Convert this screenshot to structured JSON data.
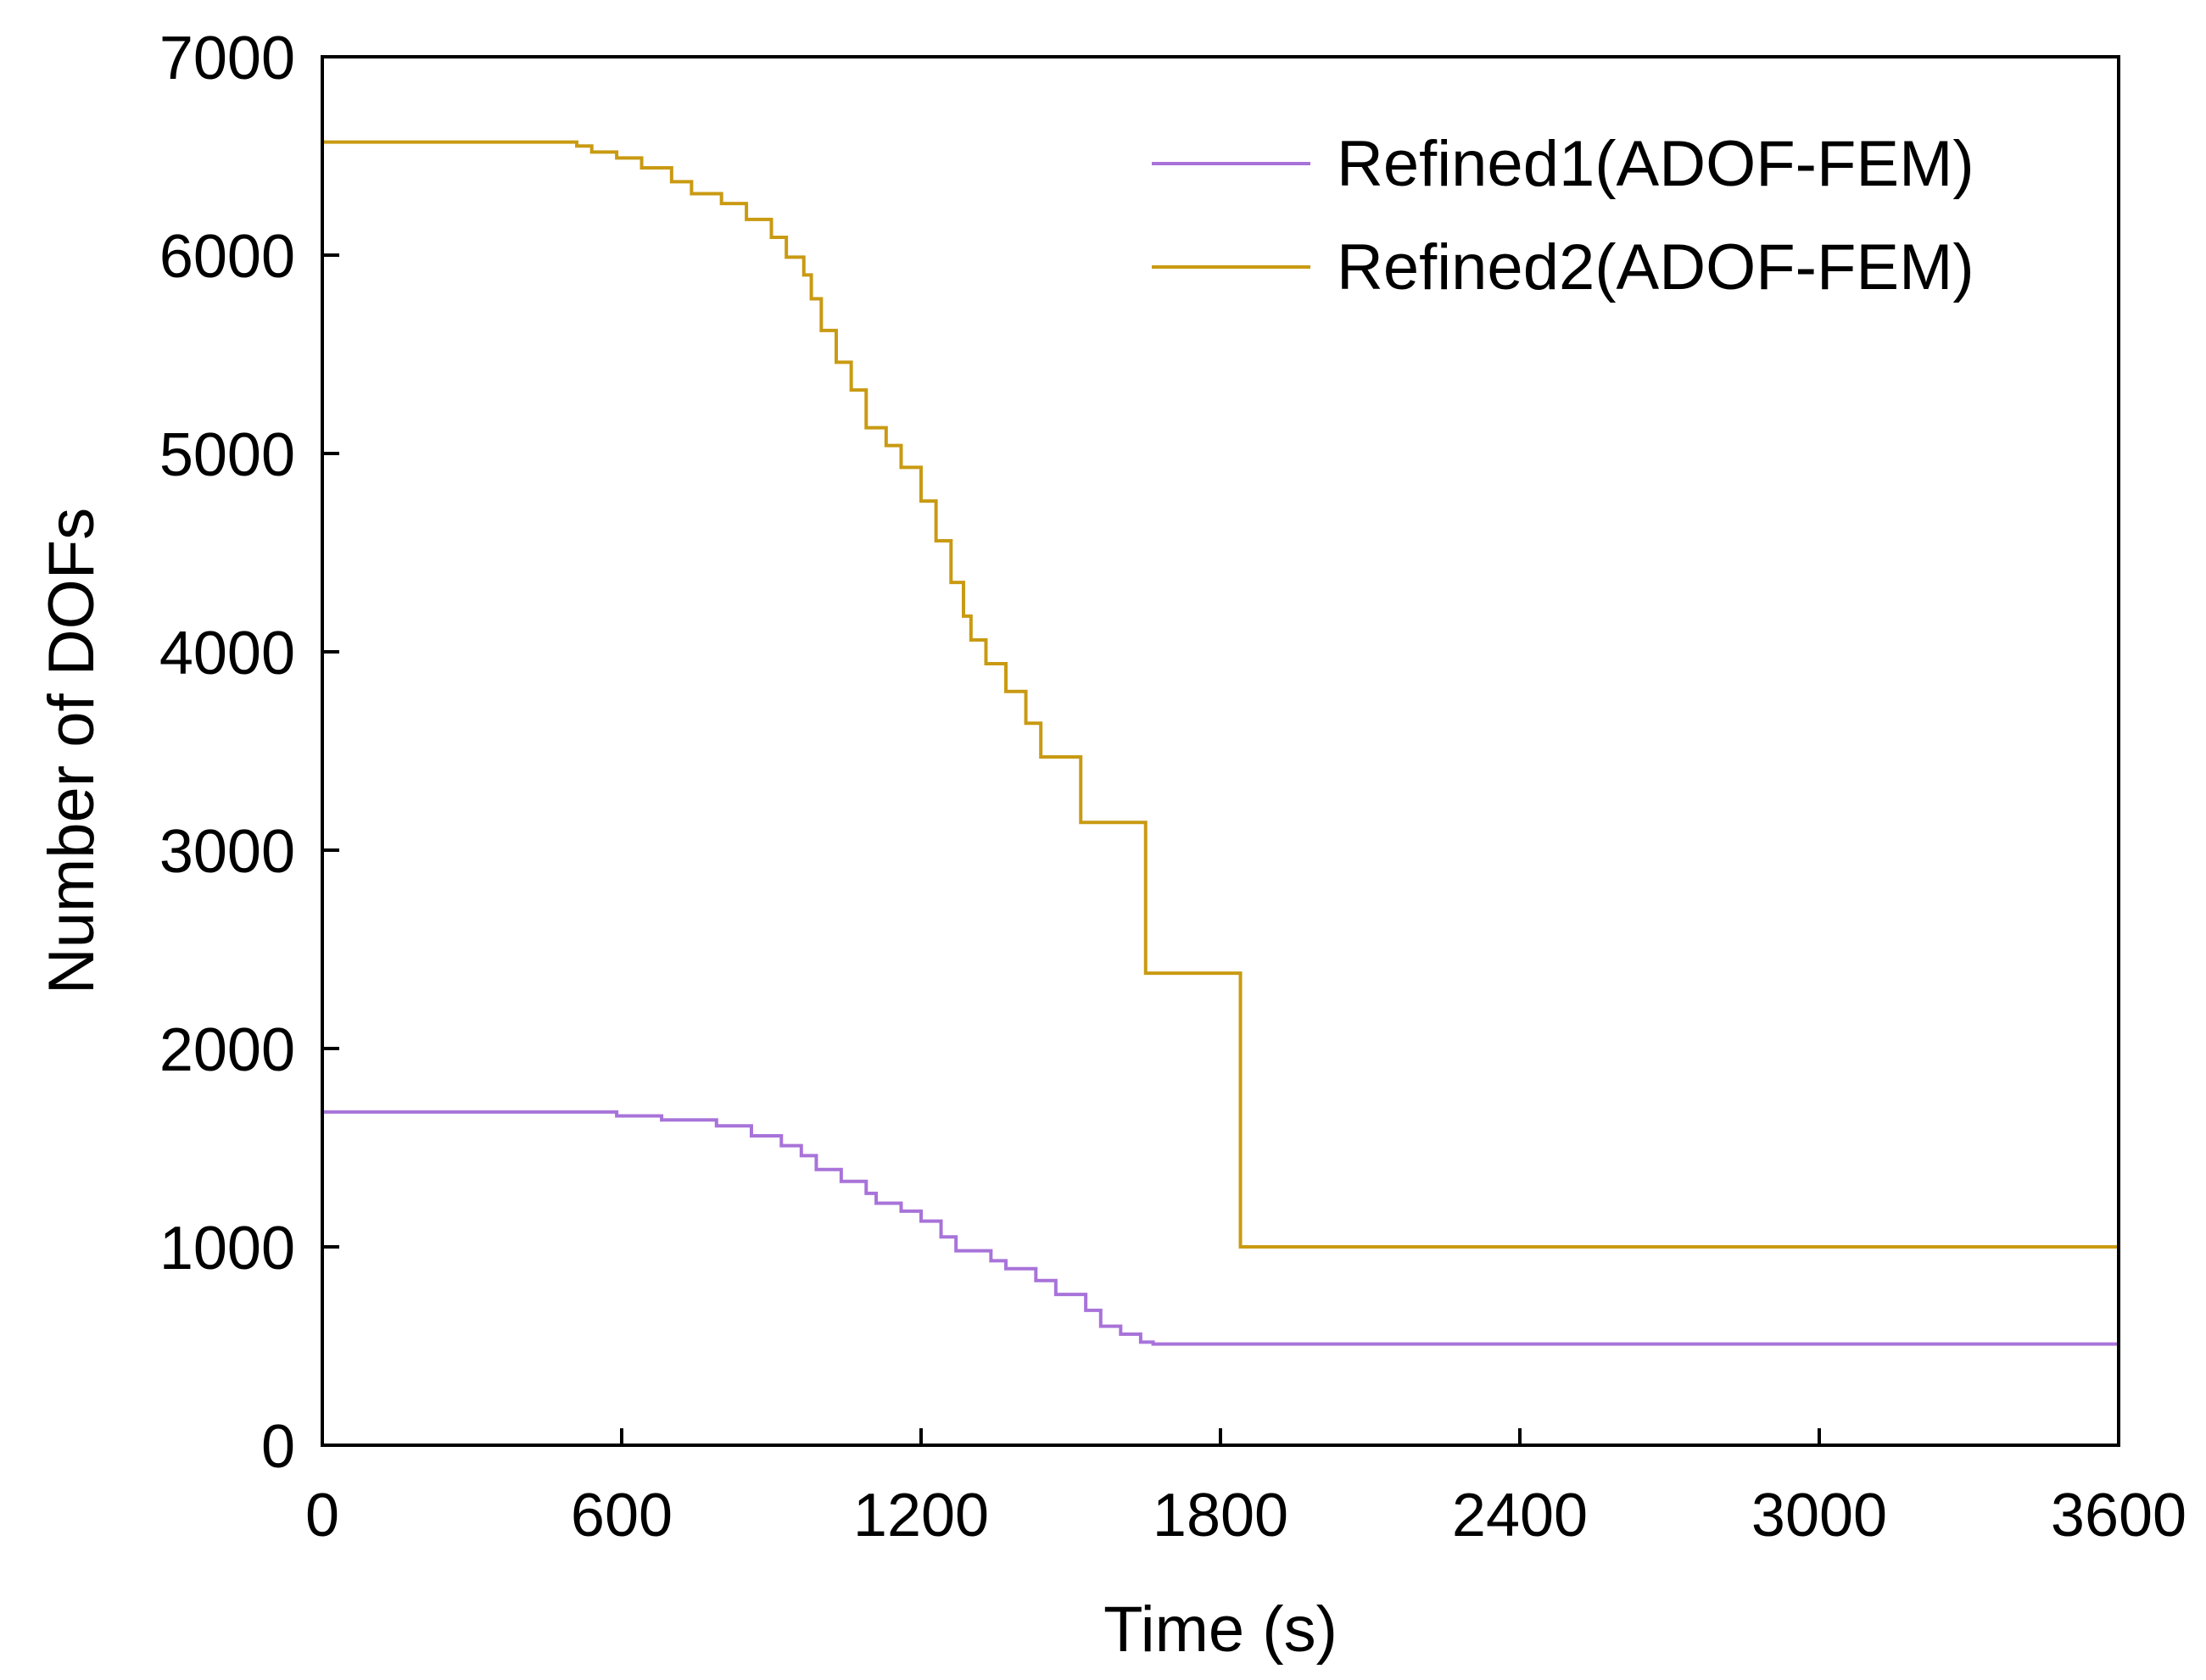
{
  "chart_data": {
    "type": "line",
    "title": "",
    "xlabel": "Time (s)",
    "ylabel": "Number of DOFs",
    "xlim": [
      0,
      3600
    ],
    "ylim": [
      0,
      7000
    ],
    "xticks": [
      0,
      600,
      1200,
      1800,
      2400,
      3000,
      3600
    ],
    "yticks": [
      0,
      1000,
      2000,
      3000,
      4000,
      5000,
      6000,
      7000
    ],
    "grid": false,
    "legend_position": "top-right",
    "series": [
      {
        "name": "Refined1(ADOF-FEM)",
        "color": "#a873d9",
        "step": true,
        "x": [
          0,
          590,
          680,
          790,
          860,
          920,
          960,
          990,
          1040,
          1090,
          1110,
          1160,
          1200,
          1240,
          1270,
          1340,
          1370,
          1430,
          1470,
          1530,
          1560,
          1600,
          1640,
          1665,
          3600
        ],
        "y": [
          1680,
          1660,
          1640,
          1610,
          1560,
          1510,
          1460,
          1390,
          1330,
          1270,
          1220,
          1180,
          1130,
          1050,
          980,
          930,
          890,
          830,
          760,
          680,
          600,
          560,
          520,
          510,
          510
        ]
      },
      {
        "name": "Refined2(ADOF-FEM)",
        "color": "#c99a12",
        "step": true,
        "x": [
          0,
          510,
          540,
          590,
          640,
          700,
          740,
          800,
          850,
          900,
          930,
          965,
          980,
          1000,
          1030,
          1060,
          1090,
          1130,
          1160,
          1200,
          1230,
          1260,
          1285,
          1300,
          1330,
          1370,
          1410,
          1440,
          1520,
          1650,
          1840,
          3600
        ],
        "y": [
          6570,
          6550,
          6520,
          6490,
          6440,
          6370,
          6310,
          6260,
          6180,
          6090,
          5990,
          5900,
          5780,
          5620,
          5460,
          5320,
          5130,
          5040,
          4930,
          4760,
          4560,
          4350,
          4180,
          4060,
          3940,
          3800,
          3640,
          3470,
          3140,
          2380,
          1000,
          670
        ]
      }
    ]
  }
}
